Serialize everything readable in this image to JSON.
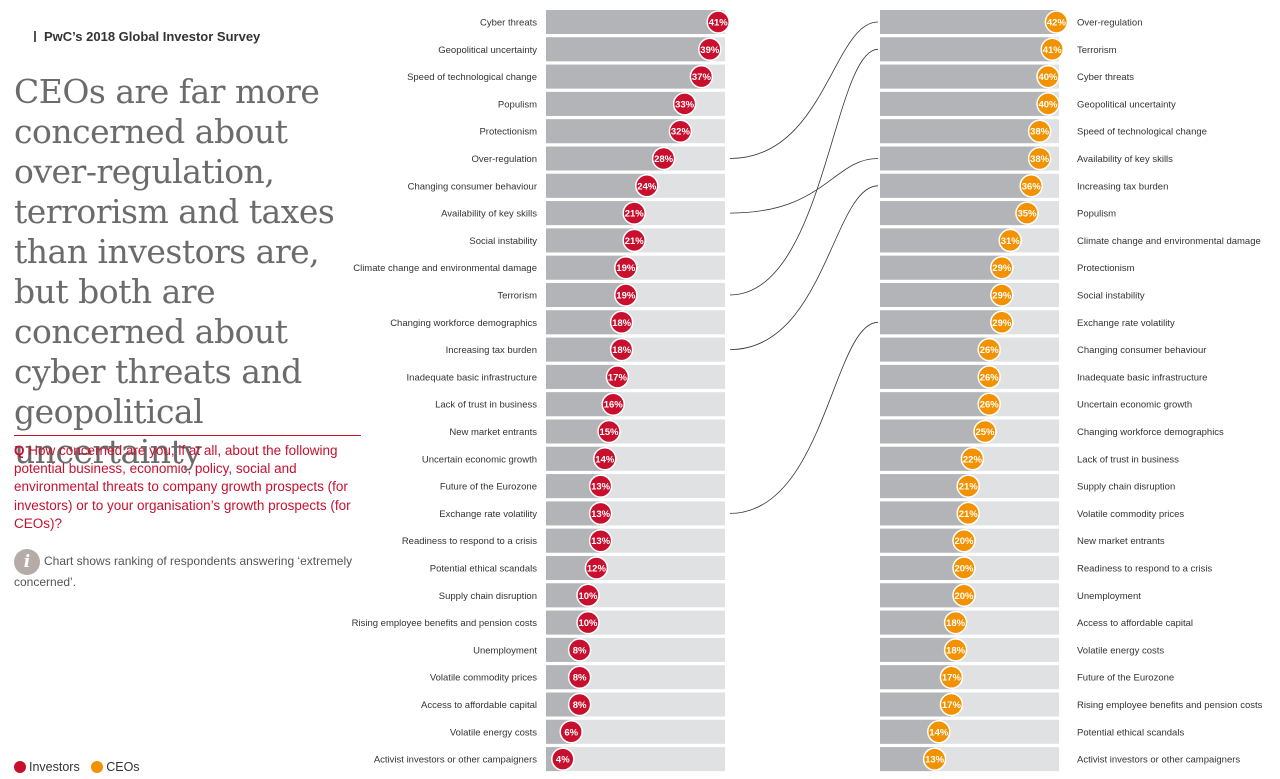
{
  "header": {
    "survey_title": "PwC’s 2018 Global Investor Survey"
  },
  "headline": "CEOs are far more concerned about over-regulation, terrorism and taxes than investors are, but both are concerned about cyber threats and geopolitical uncertainty",
  "question": {
    "prefix": "Q",
    "text": "How concerned are you, if at all, about the following potential business, economic, policy, social and environmental threats to company growth prospects (for investors) or to your organisation’s growth prospects (for CEOs)?"
  },
  "note": {
    "icon": "info-icon",
    "text": "Chart shows ranking of respondents answering ‘extremely concerned’."
  },
  "legend": [
    {
      "label": "Investors",
      "color": "#c8102e"
    },
    {
      "label": "CEOs",
      "color": "#f39200"
    }
  ],
  "colors": {
    "investors": "#c8102e",
    "ceos": "#f39200",
    "bar_filled": "#b3b4b8",
    "bar_track": "#e0e1e3",
    "connector": "#333333"
  },
  "chart_data": [
    {
      "type": "bar",
      "orientation": "horizontal",
      "series": [
        {
          "name": "Investors",
          "categories": [
            "Cyber threats",
            "Geopolitical uncertainty",
            "Speed of technological change",
            "Populism",
            "Protectionism",
            "Over-regulation",
            "Changing consumer behaviour",
            "Availability of key skills",
            "Social instability",
            "Climate change and environmental damage",
            "Terrorism",
            "Changing workforce demographics",
            "Increasing tax burden",
            "Inadequate basic infrastructure",
            "Lack of trust in business",
            "New market entrants",
            "Uncertain economic growth",
            "Future of the Eurozone",
            "Exchange rate volatility",
            "Readiness to respond to a crisis",
            "Potential ethical scandals",
            "Supply chain disruption",
            "Rising employee benefits and pension costs",
            "Unemployment",
            "Volatile commodity prices",
            "Access to affordable capital",
            "Volatile energy costs",
            "Activist investors or other campaigners"
          ],
          "values": [
            41,
            39,
            37,
            33,
            32,
            28,
            24,
            21,
            21,
            19,
            19,
            18,
            18,
            17,
            16,
            15,
            14,
            13,
            13,
            13,
            12,
            10,
            10,
            8,
            8,
            8,
            6,
            4
          ],
          "labels": [
            "41%",
            "39%",
            "37%",
            "33%",
            "32%",
            "28%",
            "24%",
            "21%",
            "21%",
            "19%",
            "19%",
            "18%",
            "18%",
            "17%",
            "16%",
            "15%",
            "14%",
            "13%",
            "13%",
            "13%",
            "12%",
            "10%",
            "10%",
            "8%",
            "8%",
            "8%",
            "6%",
            "4%"
          ]
        }
      ],
      "xlim": [
        0,
        50
      ]
    },
    {
      "type": "bar",
      "orientation": "horizontal",
      "series": [
        {
          "name": "CEOs",
          "categories": [
            "Over-regulation",
            "Terrorism",
            "Cyber threats",
            "Geopolitical uncertainty",
            "Speed of technological change",
            "Availability of key skills",
            "Increasing tax burden",
            "Populism",
            "Climate change and environmental damage",
            "Protectionism",
            "Social instability",
            "Exchange rate volatility",
            "Changing consumer behaviour",
            "Inadequate basic infrastructure",
            "Uncertain economic growth",
            "Changing workforce demographics",
            "Lack of trust in business",
            "Supply chain disruption",
            "Volatile commodity prices",
            "New market entrants",
            "Readiness to respond to a crisis",
            "Unemployment",
            "Access to affordable capital",
            "Volatile energy costs",
            "Future of the Eurozone",
            "Rising employee benefits and pension costs",
            "Potential ethical scandals",
            "Activist investors or other campaigners"
          ],
          "values": [
            42,
            41,
            40,
            40,
            38,
            38,
            36,
            35,
            31,
            29,
            29,
            29,
            26,
            26,
            26,
            25,
            22,
            21,
            21,
            20,
            20,
            20,
            18,
            18,
            17,
            17,
            14,
            13
          ],
          "labels": [
            "42%",
            "41%",
            "40%",
            "40%",
            "38%",
            "38%",
            "36%",
            "35%",
            "31%",
            "29%",
            "29%",
            "29%",
            "26%",
            "26%",
            "26%",
            "25%",
            "22%",
            "21%",
            "21%",
            "20%",
            "20%",
            "20%",
            "18%",
            "18%",
            "17%",
            "17%",
            "14%",
            "13%"
          ]
        }
      ],
      "xlim": [
        0,
        50
      ]
    }
  ],
  "connectors": [
    {
      "from_investor_rank": 6,
      "to_ceo_rank": 1,
      "category": "Over-regulation"
    },
    {
      "from_investor_rank": 11,
      "to_ceo_rank": 2,
      "category": "Terrorism"
    },
    {
      "from_investor_rank": 8,
      "to_ceo_rank": 6,
      "category": "Availability of key skills"
    },
    {
      "from_investor_rank": 13,
      "to_ceo_rank": 7,
      "category": "Increasing tax burden"
    },
    {
      "from_investor_rank": 19,
      "to_ceo_rank": 12,
      "category": "Exchange rate volatility"
    }
  ]
}
